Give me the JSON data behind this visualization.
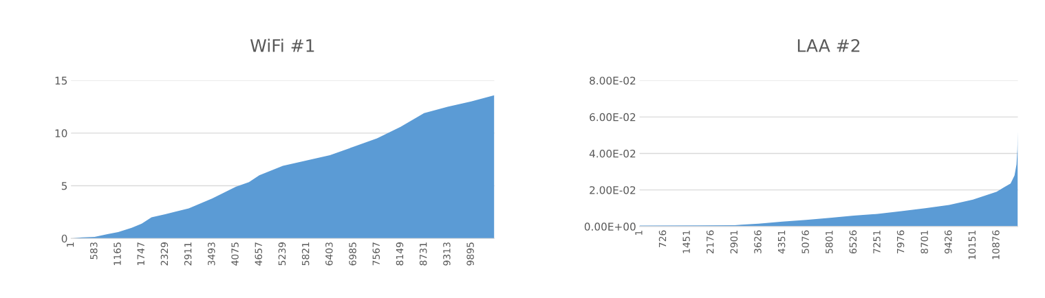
{
  "chart_data": [
    {
      "type": "area",
      "title": "WiFi #1",
      "color": "#5b9bd5",
      "x": [
        1,
        262,
        583,
        900,
        1165,
        1500,
        1747,
        1990,
        2329,
        2911,
        3493,
        4075,
        4400,
        4657,
        5239,
        5821,
        6403,
        6985,
        7567,
        8149,
        8731,
        9313,
        9895,
        10467
      ],
      "values": [
        0,
        0.1,
        0.15,
        0.4,
        0.6,
        1.0,
        1.4,
        2.0,
        2.3,
        2.85,
        3.8,
        4.9,
        5.35,
        6.0,
        6.9,
        7.4,
        7.9,
        8.7,
        9.5,
        10.6,
        11.9,
        12.5,
        13.0,
        13.6
      ],
      "xlim": [
        0.5,
        10467.5
      ],
      "xticks": [
        1,
        583,
        1165,
        1747,
        2329,
        2911,
        3493,
        4075,
        4657,
        5239,
        5821,
        6403,
        6985,
        7567,
        8149,
        8731,
        9313,
        9895
      ],
      "ylim": [
        0,
        15
      ],
      "yticks": [
        0,
        5,
        10,
        15
      ],
      "grid": "y"
    },
    {
      "type": "area",
      "title": "LAA #2",
      "color": "#5b9bd5",
      "x": [
        1,
        2901,
        3100,
        3626,
        4351,
        5076,
        5801,
        6526,
        7251,
        7976,
        8701,
        9426,
        10151,
        10876,
        11100,
        11300,
        11420,
        11480,
        11505,
        11520
      ],
      "values": [
        0.0005,
        0.0007,
        0.001,
        0.0015,
        0.0027,
        0.0036,
        0.0047,
        0.006,
        0.0069,
        0.0084,
        0.01,
        0.0118,
        0.0147,
        0.019,
        0.0215,
        0.0235,
        0.028,
        0.034,
        0.042,
        0.052
      ],
      "xlim": [
        0.5,
        11520.5
      ],
      "xticks": [
        1,
        726,
        1451,
        2176,
        2901,
        3626,
        4351,
        5076,
        5801,
        6526,
        7251,
        7976,
        8701,
        9426,
        10151,
        10876
      ],
      "ylim": [
        0,
        0.08
      ],
      "yticks": [
        {
          "value": 0,
          "label": "0.00E+00"
        },
        {
          "value": 0.02,
          "label": "2.00E-02"
        },
        {
          "value": 0.04,
          "label": "4.00E-02"
        },
        {
          "value": 0.06,
          "label": "6.00E-02"
        },
        {
          "value": 0.08,
          "label": "8.00E-02"
        }
      ],
      "grid": "y"
    }
  ]
}
